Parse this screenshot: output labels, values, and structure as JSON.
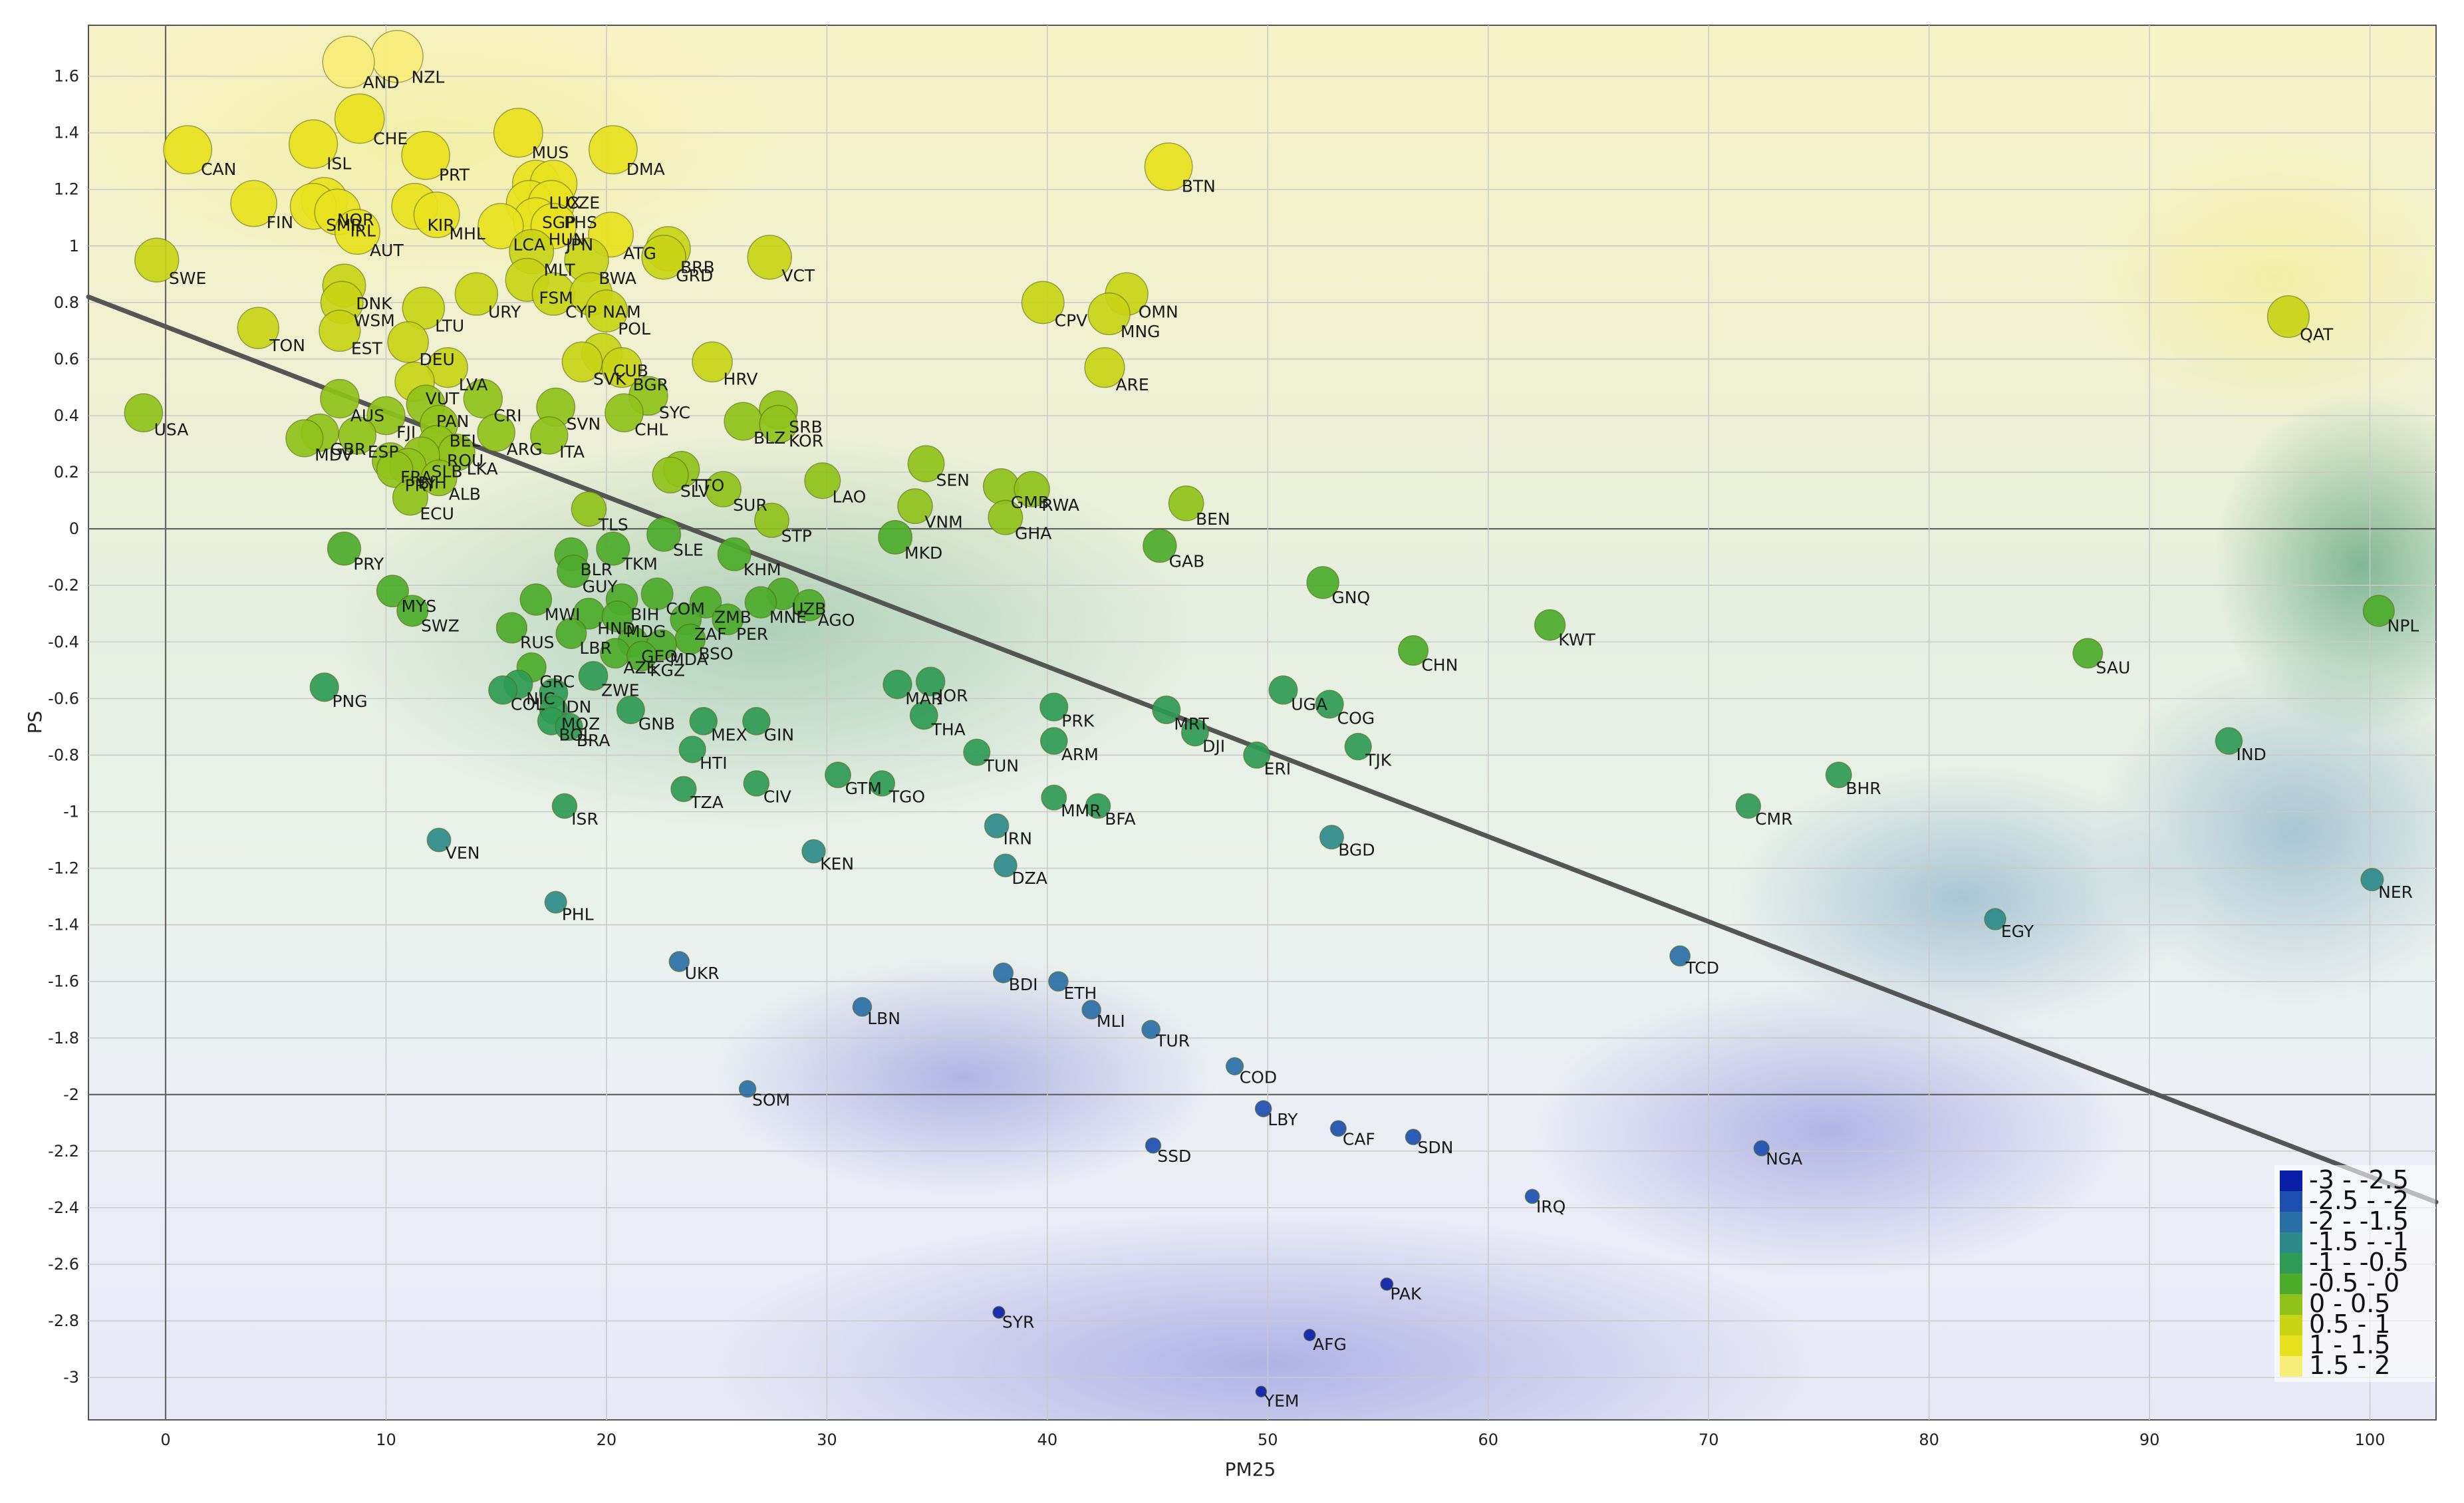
{
  "chart_data": {
    "type": "scatter",
    "title": "",
    "xlabel": "PM25",
    "ylabel": "PS",
    "xlim": [
      -3.5,
      103
    ],
    "ylim": [
      -3.15,
      1.78
    ],
    "x_ticks": [
      0,
      10,
      20,
      30,
      40,
      50,
      60,
      70,
      80,
      90,
      100
    ],
    "y_ticks": [
      1.6,
      1.4,
      1.2,
      1,
      0.8,
      0.6,
      0.4,
      0.2,
      0,
      -0.2,
      -0.4,
      -0.6,
      -0.8,
      -1,
      -1.2,
      -1.4,
      -1.6,
      -1.8,
      -2,
      -2.2,
      -2.4,
      -2.6,
      -2.8,
      -3
    ],
    "grid": true,
    "bold_gridlines": {
      "x": [
        0
      ],
      "y": [
        0,
        -2
      ]
    },
    "trendline": {
      "x": [
        -3.5,
        103
      ],
      "y": [
        0.82,
        -2.38
      ]
    },
    "legend": {
      "position": "bottom-right",
      "entries": [
        {
          "label": "-3 - -2.5",
          "color": "#0a1fa8"
        },
        {
          "label": "-2.5 - -2",
          "color": "#1c4fb0"
        },
        {
          "label": "-2 - -1.5",
          "color": "#2a6fa6"
        },
        {
          "label": "-1.5 - -1",
          "color": "#2e8a8a"
        },
        {
          "label": "-1 - -0.5",
          "color": "#2f9a55"
        },
        {
          "label": "-0.5 - 0",
          "color": "#4cab2a"
        },
        {
          "label": "0 - 0.5",
          "color": "#8fc21a"
        },
        {
          "label": "0.5 - 1",
          "color": "#c9d416"
        },
        {
          "label": "1 - 1.5",
          "color": "#e8e21e"
        },
        {
          "label": "1.5 - 2",
          "color": "#f7ee7a"
        }
      ]
    },
    "points": [
      {
        "label": "NZL",
        "x": 10.5,
        "y": 1.67
      },
      {
        "label": "AND",
        "x": 8.3,
        "y": 1.65
      },
      {
        "label": "CHE",
        "x": 8.8,
        "y": 1.45
      },
      {
        "label": "ISL",
        "x": 6.7,
        "y": 1.36
      },
      {
        "label": "CAN",
        "x": 1.0,
        "y": 1.34
      },
      {
        "label": "PRT",
        "x": 11.8,
        "y": 1.32
      },
      {
        "label": "MUS",
        "x": 16.0,
        "y": 1.4
      },
      {
        "label": "DMA",
        "x": 20.3,
        "y": 1.34
      },
      {
        "label": "LUX",
        "x": 16.8,
        "y": 1.22
      },
      {
        "label": "CZE",
        "x": 17.6,
        "y": 1.22
      },
      {
        "label": "SGP",
        "x": 16.5,
        "y": 1.15
      },
      {
        "label": "PHS",
        "x": 17.5,
        "y": 1.15
      },
      {
        "label": "HUN",
        "x": 16.8,
        "y": 1.09
      },
      {
        "label": "LCA",
        "x": 15.2,
        "y": 1.07
      },
      {
        "label": "JPN",
        "x": 17.6,
        "y": 1.07
      },
      {
        "label": "FIN",
        "x": 4.0,
        "y": 1.15
      },
      {
        "label": "NOR",
        "x": 7.2,
        "y": 1.16
      },
      {
        "label": "SMR",
        "x": 6.7,
        "y": 1.14
      },
      {
        "label": "IRL",
        "x": 7.8,
        "y": 1.12
      },
      {
        "label": "AUT",
        "x": 8.7,
        "y": 1.05
      },
      {
        "label": "KIR",
        "x": 11.3,
        "y": 1.14
      },
      {
        "label": "MHL",
        "x": 12.3,
        "y": 1.11
      },
      {
        "label": "BTN",
        "x": 45.5,
        "y": 1.28
      },
      {
        "label": "ATG",
        "x": 20.2,
        "y": 1.04
      },
      {
        "label": "MLT",
        "x": 16.6,
        "y": 0.98
      },
      {
        "label": "BWA",
        "x": 19.1,
        "y": 0.95
      },
      {
        "label": "BRB",
        "x": 22.8,
        "y": 0.99
      },
      {
        "label": "GRD",
        "x": 22.6,
        "y": 0.96
      },
      {
        "label": "VCT",
        "x": 27.4,
        "y": 0.96
      },
      {
        "label": "SWE",
        "x": -0.4,
        "y": 0.95
      },
      {
        "label": "FSM",
        "x": 16.4,
        "y": 0.88
      },
      {
        "label": "CYP",
        "x": 17.6,
        "y": 0.83
      },
      {
        "label": "NAM",
        "x": 19.3,
        "y": 0.83
      },
      {
        "label": "URY",
        "x": 14.1,
        "y": 0.83
      },
      {
        "label": "DNK",
        "x": 8.1,
        "y": 0.86
      },
      {
        "label": "WSM",
        "x": 8.0,
        "y": 0.8
      },
      {
        "label": "LTU",
        "x": 11.7,
        "y": 0.78
      },
      {
        "label": "POL",
        "x": 20.0,
        "y": 0.77
      },
      {
        "label": "TON",
        "x": 4.2,
        "y": 0.71
      },
      {
        "label": "EST",
        "x": 7.9,
        "y": 0.7
      },
      {
        "label": "CPV",
        "x": 39.8,
        "y": 0.8
      },
      {
        "label": "OMN",
        "x": 43.6,
        "y": 0.83
      },
      {
        "label": "MNG",
        "x": 42.8,
        "y": 0.76
      },
      {
        "label": "ARE",
        "x": 42.6,
        "y": 0.57
      },
      {
        "label": "QAT",
        "x": 96.3,
        "y": 0.75
      },
      {
        "label": "DEU",
        "x": 11.0,
        "y": 0.66
      },
      {
        "label": "VUT",
        "x": 11.3,
        "y": 0.52
      },
      {
        "label": "LVA",
        "x": 12.8,
        "y": 0.57
      },
      {
        "label": "HRV",
        "x": 24.8,
        "y": 0.59
      },
      {
        "label": "SVK",
        "x": 18.9,
        "y": 0.59
      },
      {
        "label": "CUB",
        "x": 19.8,
        "y": 0.62
      },
      {
        "label": "BGR",
        "x": 20.7,
        "y": 0.57
      },
      {
        "label": "USA",
        "x": -1.0,
        "y": 0.41
      },
      {
        "label": "AUS",
        "x": 7.9,
        "y": 0.46
      },
      {
        "label": "PAN",
        "x": 11.8,
        "y": 0.44
      },
      {
        "label": "CRI",
        "x": 14.4,
        "y": 0.46
      },
      {
        "label": "SYC",
        "x": 21.9,
        "y": 0.47
      },
      {
        "label": "SVN",
        "x": 17.7,
        "y": 0.43
      },
      {
        "label": "CHL",
        "x": 20.8,
        "y": 0.41
      },
      {
        "label": "FJI",
        "x": 10.0,
        "y": 0.4
      },
      {
        "label": "BEL",
        "x": 12.4,
        "y": 0.37
      },
      {
        "label": "SRB",
        "x": 27.8,
        "y": 0.42
      },
      {
        "label": "BLZ",
        "x": 26.2,
        "y": 0.38
      },
      {
        "label": "KOR",
        "x": 27.8,
        "y": 0.37
      },
      {
        "label": "MDV",
        "x": 6.3,
        "y": 0.32
      },
      {
        "label": "GBR",
        "x": 7.0,
        "y": 0.34
      },
      {
        "label": "ESP",
        "x": 8.7,
        "y": 0.33
      },
      {
        "label": "ARG",
        "x": 15.0,
        "y": 0.34
      },
      {
        "label": "ITA",
        "x": 17.4,
        "y": 0.33
      },
      {
        "label": "ROU",
        "x": 12.3,
        "y": 0.3
      },
      {
        "label": "LKA",
        "x": 13.2,
        "y": 0.27
      },
      {
        "label": "FRA",
        "x": 10.2,
        "y": 0.24
      },
      {
        "label": "SLB",
        "x": 11.6,
        "y": 0.26
      },
      {
        "label": "BIH",
        "x": 11.0,
        "y": 0.22
      },
      {
        "label": "PRY",
        "x": 10.4,
        "y": 0.21
      },
      {
        "label": "ALB",
        "x": 12.4,
        "y": 0.18
      },
      {
        "label": "ECU",
        "x": 11.1,
        "y": 0.11
      },
      {
        "label": "SLV",
        "x": 22.9,
        "y": 0.19
      },
      {
        "label": "TTO",
        "x": 23.4,
        "y": 0.21
      },
      {
        "label": "SUR",
        "x": 25.3,
        "y": 0.14
      },
      {
        "label": "LAO",
        "x": 29.8,
        "y": 0.17
      },
      {
        "label": "SEN",
        "x": 34.5,
        "y": 0.23
      },
      {
        "label": "VNM",
        "x": 34.0,
        "y": 0.08
      },
      {
        "label": "GMB",
        "x": 37.9,
        "y": 0.15
      },
      {
        "label": "RWA",
        "x": 39.3,
        "y": 0.14
      },
      {
        "label": "GHA",
        "x": 38.1,
        "y": 0.04
      },
      {
        "label": "BEN",
        "x": 46.3,
        "y": 0.09
      },
      {
        "label": "STP",
        "x": 27.5,
        "y": 0.03
      },
      {
        "label": "TLS",
        "x": 19.2,
        "y": 0.07
      },
      {
        "label": "MKD",
        "x": 33.1,
        "y": -0.03
      },
      {
        "label": "SLE",
        "x": 22.6,
        "y": -0.02
      },
      {
        "label": "GAB",
        "x": 45.1,
        "y": -0.06
      },
      {
        "label": "PRY",
        "x": 8.1,
        "y": -0.07
      },
      {
        "label": "BLR",
        "x": 18.4,
        "y": -0.09
      },
      {
        "label": "TKM",
        "x": 20.3,
        "y": -0.07
      },
      {
        "label": "KHM",
        "x": 25.8,
        "y": -0.09
      },
      {
        "label": "GUY",
        "x": 18.5,
        "y": -0.15
      },
      {
        "label": "MYS",
        "x": 10.3,
        "y": -0.22
      },
      {
        "label": "SWZ",
        "x": 11.2,
        "y": -0.29
      },
      {
        "label": "GNQ",
        "x": 52.5,
        "y": -0.19
      },
      {
        "label": "KWT",
        "x": 62.8,
        "y": -0.34
      },
      {
        "label": "MWI",
        "x": 16.8,
        "y": -0.25
      },
      {
        "label": "BIH",
        "x": 20.7,
        "y": -0.25
      },
      {
        "label": "COM",
        "x": 22.3,
        "y": -0.23
      },
      {
        "label": "ZMB",
        "x": 24.5,
        "y": -0.26
      },
      {
        "label": "MNE",
        "x": 27.0,
        "y": -0.26
      },
      {
        "label": "UZB",
        "x": 28.0,
        "y": -0.23
      },
      {
        "label": "AGO",
        "x": 29.2,
        "y": -0.27
      },
      {
        "label": "HND",
        "x": 19.2,
        "y": -0.3
      },
      {
        "label": "MDG",
        "x": 20.5,
        "y": -0.31
      },
      {
        "label": "ZAF",
        "x": 23.6,
        "y": -0.32
      },
      {
        "label": "PER",
        "x": 25.5,
        "y": -0.32
      },
      {
        "label": "RUS",
        "x": 15.7,
        "y": -0.35
      },
      {
        "label": "LBR",
        "x": 18.4,
        "y": -0.37
      },
      {
        "label": "GEO",
        "x": 21.2,
        "y": -0.4
      },
      {
        "label": "MDA",
        "x": 22.5,
        "y": -0.41
      },
      {
        "label": "BSO",
        "x": 23.8,
        "y": -0.39
      },
      {
        "label": "AZE",
        "x": 20.4,
        "y": -0.44
      },
      {
        "label": "KGZ",
        "x": 21.6,
        "y": -0.45
      },
      {
        "label": "CHN",
        "x": 56.6,
        "y": -0.43
      },
      {
        "label": "SAU",
        "x": 87.2,
        "y": -0.44
      },
      {
        "label": "NPL",
        "x": 100.4,
        "y": -0.29
      },
      {
        "label": "GRC",
        "x": 16.6,
        "y": -0.49
      },
      {
        "label": "ZWE",
        "x": 19.4,
        "y": -0.52
      },
      {
        "label": "NIC",
        "x": 16.0,
        "y": -0.55
      },
      {
        "label": "COL",
        "x": 15.3,
        "y": -0.57
      },
      {
        "label": "IDN",
        "x": 17.6,
        "y": -0.58
      },
      {
        "label": "PNG",
        "x": 7.2,
        "y": -0.56
      },
      {
        "label": "MAR",
        "x": 33.2,
        "y": -0.55
      },
      {
        "label": "JOR",
        "x": 34.7,
        "y": -0.54
      },
      {
        "label": "UGA",
        "x": 50.7,
        "y": -0.57
      },
      {
        "label": "COG",
        "x": 52.8,
        "y": -0.62
      },
      {
        "label": "MOZ",
        "x": 17.6,
        "y": -0.64
      },
      {
        "label": "GNB",
        "x": 21.1,
        "y": -0.64
      },
      {
        "label": "PRK",
        "x": 40.3,
        "y": -0.63
      },
      {
        "label": "MRT",
        "x": 45.4,
        "y": -0.64
      },
      {
        "label": "BOL",
        "x": 17.5,
        "y": -0.68
      },
      {
        "label": "BRA",
        "x": 18.3,
        "y": -0.7
      },
      {
        "label": "MEX",
        "x": 24.4,
        "y": -0.68
      },
      {
        "label": "GIN",
        "x": 26.8,
        "y": -0.68
      },
      {
        "label": "THA",
        "x": 34.4,
        "y": -0.66
      },
      {
        "label": "DJI",
        "x": 46.7,
        "y": -0.72
      },
      {
        "label": "ARM",
        "x": 40.3,
        "y": -0.75
      },
      {
        "label": "TJK",
        "x": 54.1,
        "y": -0.77
      },
      {
        "label": "HTI",
        "x": 23.9,
        "y": -0.78
      },
      {
        "label": "TUN",
        "x": 36.8,
        "y": -0.79
      },
      {
        "label": "ERI",
        "x": 49.5,
        "y": -0.8
      },
      {
        "label": "IND",
        "x": 93.6,
        "y": -0.75
      },
      {
        "label": "BHR",
        "x": 75.9,
        "y": -0.87
      },
      {
        "label": "GTM",
        "x": 30.5,
        "y": -0.87
      },
      {
        "label": "TGO",
        "x": 32.5,
        "y": -0.9
      },
      {
        "label": "CIV",
        "x": 26.8,
        "y": -0.9
      },
      {
        "label": "TZA",
        "x": 23.5,
        "y": -0.92
      },
      {
        "label": "MMR",
        "x": 40.3,
        "y": -0.95
      },
      {
        "label": "BFA",
        "x": 42.3,
        "y": -0.98
      },
      {
        "label": "ISR",
        "x": 18.1,
        "y": -0.98
      },
      {
        "label": "CMR",
        "x": 71.8,
        "y": -0.98
      },
      {
        "label": "IRN",
        "x": 37.7,
        "y": -1.05
      },
      {
        "label": "BGD",
        "x": 52.9,
        "y": -1.09
      },
      {
        "label": "VEN",
        "x": 12.4,
        "y": -1.1
      },
      {
        "label": "KEN",
        "x": 29.4,
        "y": -1.14
      },
      {
        "label": "DZA",
        "x": 38.1,
        "y": -1.19
      },
      {
        "label": "NER",
        "x": 100.1,
        "y": -1.24
      },
      {
        "label": "PHL",
        "x": 17.7,
        "y": -1.32
      },
      {
        "label": "EGY",
        "x": 83.0,
        "y": -1.38
      },
      {
        "label": "TCD",
        "x": 68.7,
        "y": -1.51
      },
      {
        "label": "UKR",
        "x": 23.3,
        "y": -1.53
      },
      {
        "label": "BDI",
        "x": 38.0,
        "y": -1.57
      },
      {
        "label": "ETH",
        "x": 40.5,
        "y": -1.6
      },
      {
        "label": "LBN",
        "x": 31.6,
        "y": -1.69
      },
      {
        "label": "MLI",
        "x": 42.0,
        "y": -1.7
      },
      {
        "label": "TUR",
        "x": 44.7,
        "y": -1.77
      },
      {
        "label": "COD",
        "x": 48.5,
        "y": -1.9
      },
      {
        "label": "SOM",
        "x": 26.4,
        "y": -1.98
      },
      {
        "label": "LBY",
        "x": 49.8,
        "y": -2.05
      },
      {
        "label": "CAF",
        "x": 53.2,
        "y": -2.12
      },
      {
        "label": "SDN",
        "x": 56.6,
        "y": -2.15
      },
      {
        "label": "SSD",
        "x": 44.8,
        "y": -2.18
      },
      {
        "label": "NGA",
        "x": 72.4,
        "y": -2.19
      },
      {
        "label": "IRQ",
        "x": 62.0,
        "y": -2.36
      },
      {
        "label": "PAK",
        "x": 55.4,
        "y": -2.67
      },
      {
        "label": "SYR",
        "x": 37.8,
        "y": -2.77
      },
      {
        "label": "AFG",
        "x": 51.9,
        "y": -2.85
      },
      {
        "label": "YEM",
        "x": 49.7,
        "y": -3.05
      }
    ]
  }
}
